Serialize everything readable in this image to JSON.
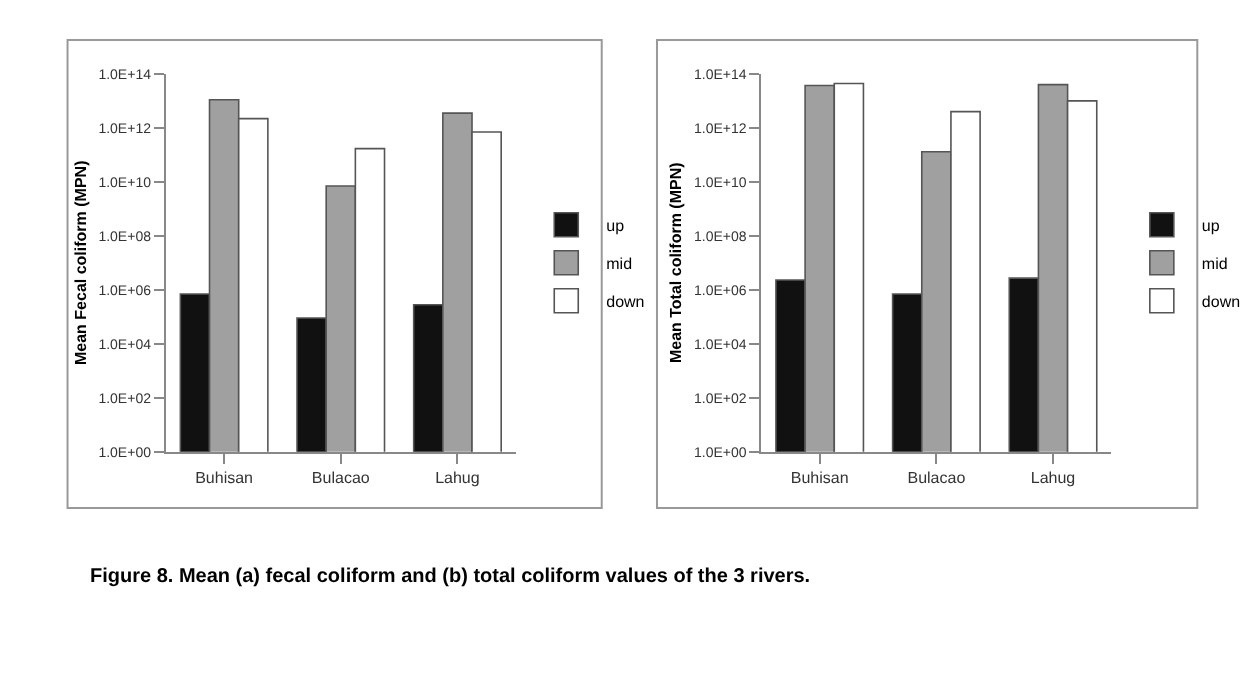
{
  "chart_data": [
    {
      "type": "bar",
      "ylabel": "Mean Fecal coliform (MPN)",
      "categories": [
        "Buhisan",
        "Bulacao",
        "Lahug"
      ],
      "log": "y",
      "ylim": [
        1,
        100000000000000.0
      ],
      "yticks": [
        {
          "value": 1,
          "label": "1.0E+00"
        },
        {
          "value": 100,
          "label": "1.0E+02"
        },
        {
          "value": 10000,
          "label": "1.0E+04"
        },
        {
          "value": 1000000,
          "label": "1.0E+06"
        },
        {
          "value": 100000000,
          "label": "1.0E+08"
        },
        {
          "value": 10000000000,
          "label": "1.0E+10"
        },
        {
          "value": 1000000000000,
          "label": "1.0E+12"
        },
        {
          "value": 100000000000000,
          "label": "1.0E+14"
        }
      ],
      "legend": "right",
      "series": [
        {
          "name": "up",
          "color": "#111111",
          "values": [
            700000,
            90000,
            280000
          ]
        },
        {
          "name": "mid",
          "color": "#a0a0a0",
          "values": [
            11000000000000,
            7000000000,
            3500000000000
          ]
        },
        {
          "name": "down",
          "color": "#ffffff",
          "values": [
            2200000000000,
            170000000000,
            700000000000
          ]
        }
      ],
      "annotations": [
        "Figure 8. Mean (a) fecal coliform and (b) total coliform values of the 3 rivers."
      ]
    },
    {
      "type": "bar",
      "ylabel": "Mean Total coliform (MPN)",
      "categories": [
        "Buhisan",
        "Bulacao",
        "Lahug"
      ],
      "log": "y",
      "ylim": [
        1,
        100000000000000.0
      ],
      "yticks": [
        {
          "value": 1,
          "label": "1.0E+00"
        },
        {
          "value": 100,
          "label": "1.0E+02"
        },
        {
          "value": 10000,
          "label": "1.0E+04"
        },
        {
          "value": 1000000,
          "label": "1.0E+06"
        },
        {
          "value": 100000000,
          "label": "1.0E+08"
        },
        {
          "value": 10000000000,
          "label": "1.0E+10"
        },
        {
          "value": 1000000000000,
          "label": "1.0E+12"
        },
        {
          "value": 100000000000000,
          "label": "1.0E+14"
        }
      ],
      "legend": "right",
      "series": [
        {
          "name": "up",
          "color": "#111111",
          "values": [
            2300000,
            700000,
            2700000
          ]
        },
        {
          "name": "mid",
          "color": "#a0a0a0",
          "values": [
            37000000000000,
            130000000000,
            40000000000000
          ]
        },
        {
          "name": "down",
          "color": "#ffffff",
          "values": [
            44000000000000,
            4000000000000,
            10000000000000
          ]
        }
      ]
    }
  ]
}
